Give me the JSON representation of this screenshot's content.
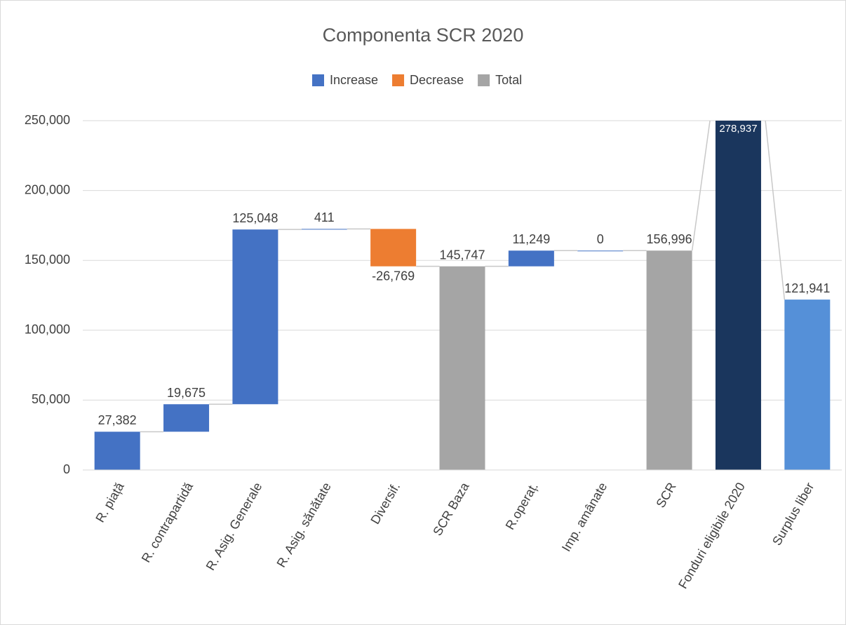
{
  "chart_data": {
    "type": "waterfall",
    "title": "Componenta SCR 2020",
    "legend": [
      {
        "name": "Increase",
        "color": "#4472c4"
      },
      {
        "name": "Decrease",
        "color": "#ed7d31"
      },
      {
        "name": "Total",
        "color": "#a5a5a5"
      }
    ],
    "categories": [
      "R. piață",
      "R. contrapartidă",
      "R. Asig. Generale",
      "R. Asig. sănătate",
      "Diversif.",
      "SCR Baza",
      "R.operaț.",
      "Imp. amânate",
      "SCR",
      "Fonduri eligibile 2020",
      "Surplus liber"
    ],
    "values": [
      27382,
      19675,
      125048,
      411,
      -26769,
      145747,
      11249,
      0,
      156996,
      278937,
      121941
    ],
    "value_labels": [
      "27,382",
      "19,675",
      "125,048",
      "411",
      "-26,769",
      "145,747",
      "11,249",
      "0",
      "156,996",
      "278,937",
      "121,941"
    ],
    "is_total": [
      false,
      false,
      false,
      false,
      false,
      true,
      false,
      false,
      true,
      true,
      true
    ],
    "colors": [
      "#4472c4",
      "#4472c4",
      "#4472c4",
      "#4472c4",
      "#ed7d31",
      "#a5a5a5",
      "#4472c4",
      "#4472c4",
      "#a5a5a5",
      "#1a365d",
      "#5590d8"
    ],
    "ylim": [
      0,
      250000
    ],
    "yticks": [
      0,
      {
        "value": 50000,
        "label": "50,000"
      },
      {
        "value": 100000,
        "label": "100,000"
      },
      {
        "value": 150000,
        "label": "150,000"
      },
      {
        "value": 200000,
        "label": "200,000"
      },
      {
        "value": 250000,
        "label": "250,000"
      }
    ],
    "grid": true
  }
}
